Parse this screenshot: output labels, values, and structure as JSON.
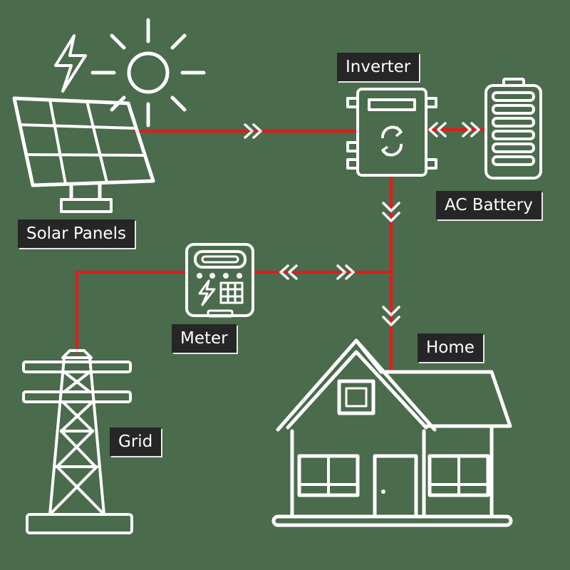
{
  "labels": {
    "solar_panels": "Solar Panels",
    "inverter": "Inverter",
    "ac_battery": "AC Battery",
    "meter": "Meter",
    "home": "Home",
    "grid": "Grid"
  },
  "colors": {
    "background": "#4a6b4c",
    "line": "#e31b1b",
    "icon": "#ffffff",
    "label_bg": "#262626",
    "label_text": "#ffffff"
  },
  "icons": [
    "sun-icon",
    "lightning-icon",
    "solar-panel-icon",
    "inverter-icon",
    "battery-icon",
    "meter-icon",
    "home-icon",
    "power-pylon-icon"
  ]
}
